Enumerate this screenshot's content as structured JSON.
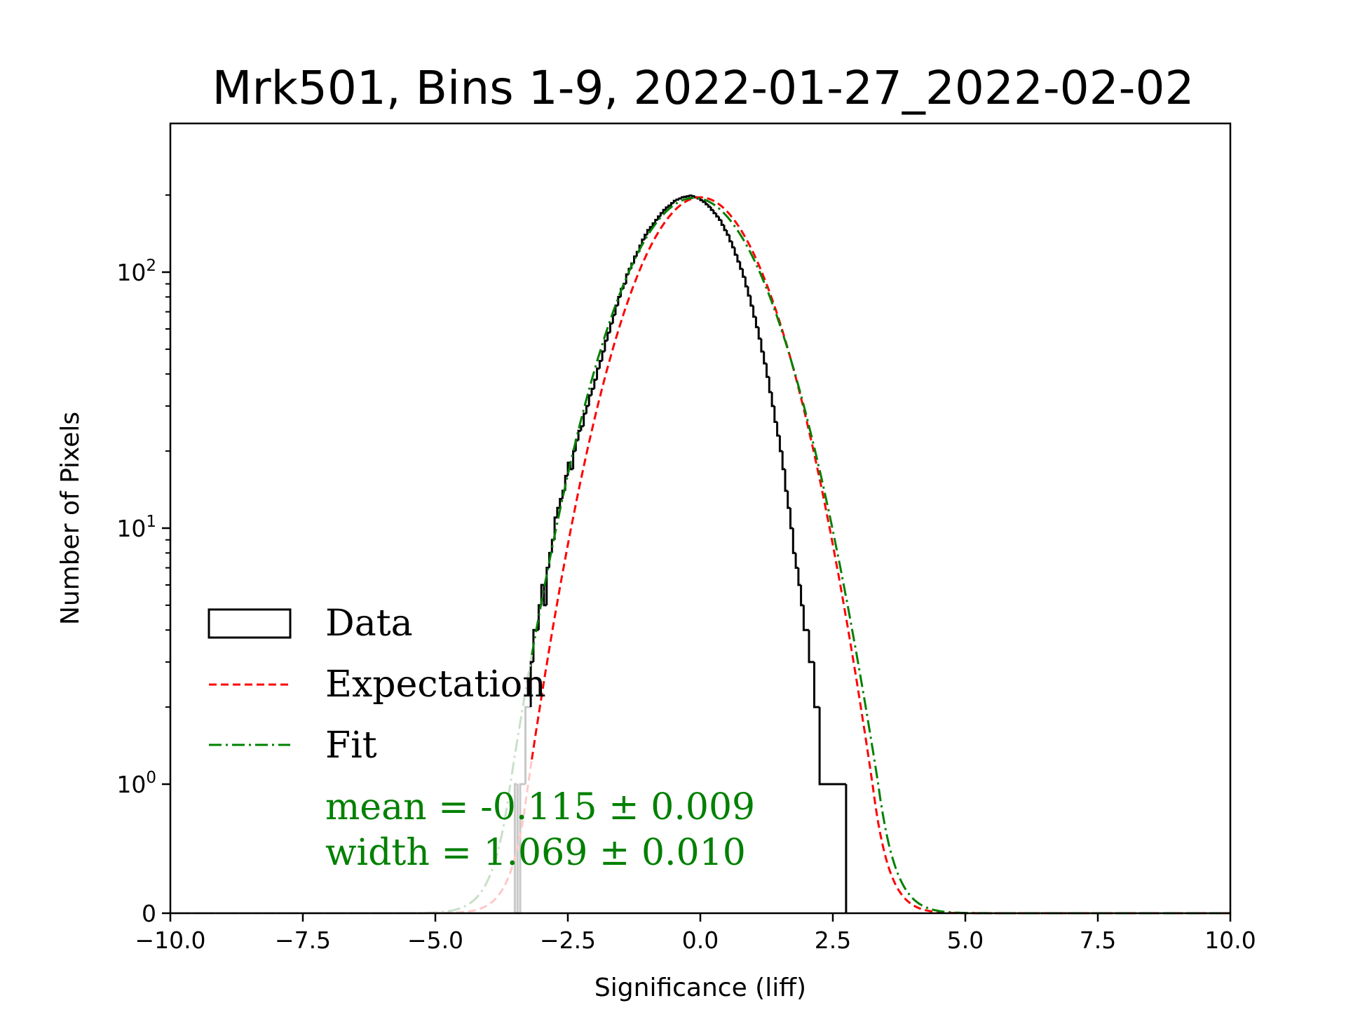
{
  "chart_data": {
    "type": "histogram",
    "title": "Mrk501, Bins 1-9, 2022-01-27_2022-02-02",
    "xlabel": "Significance (liff)",
    "ylabel": "Number of Pixels",
    "xlim": [
      -10,
      10
    ],
    "y_scale": "symlog",
    "x_ticks": [
      -10,
      -7.5,
      -5,
      -2.5,
      0,
      2.5,
      5,
      7.5,
      10
    ],
    "x_tick_labels": [
      "−10.0",
      "−7.5",
      "−5.0",
      "−2.5",
      "0.0",
      "2.5",
      "5.0",
      "7.5",
      "10.0"
    ],
    "y_ticks": [
      0,
      1,
      10,
      100
    ],
    "y_tick_labels": [
      {
        "base": "0",
        "exp": ""
      },
      {
        "base": "10",
        "exp": "0"
      },
      {
        "base": "10",
        "exp": "1"
      },
      {
        "base": "10",
        "exp": "2"
      }
    ],
    "histogram": {
      "name": "Data",
      "color": "#000000",
      "bin_width": 0.05,
      "bin_edges_start": -3.5,
      "counts": [
        1,
        0,
        1,
        1,
        2,
        2,
        3,
        4,
        4,
        5,
        6,
        5,
        7,
        8,
        9,
        11,
        12,
        13,
        14,
        16,
        18,
        17,
        20,
        22,
        24,
        25,
        28,
        30,
        33,
        35,
        38,
        42,
        45,
        49,
        54,
        58,
        63,
        68,
        74,
        80,
        86,
        90,
        98,
        103,
        108,
        115,
        120,
        127,
        134,
        140,
        146,
        150,
        155,
        160,
        165,
        170,
        175,
        179,
        182,
        186,
        190,
        192,
        194,
        196,
        197,
        198,
        199,
        198,
        196,
        194,
        191,
        188,
        184,
        180,
        175,
        170,
        165,
        160,
        153,
        146,
        140,
        132,
        125,
        117,
        110,
        103,
        96,
        88,
        81,
        74,
        67,
        61,
        55,
        49,
        44,
        39,
        34,
        30,
        26,
        23,
        20,
        17,
        14,
        12,
        10,
        8,
        7,
        6,
        5,
        4,
        4,
        3,
        3,
        2,
        2,
        1,
        1,
        1,
        1,
        1,
        1,
        1,
        1,
        1,
        1
      ]
    },
    "series": [
      {
        "name": "Expectation",
        "style": "dashed",
        "color": "#ff0000",
        "mean": 0.0,
        "width": 1.0,
        "peak": 196
      },
      {
        "name": "Fit",
        "style": "dash-dot",
        "color": "#008000",
        "mean": -0.115,
        "width": 1.069,
        "peak": 195
      }
    ],
    "faded_below_x": -3.2,
    "legend_position": "lower-left",
    "annotations": {
      "mean_text": "mean = -0.115 ± 0.009",
      "width_text": "width = 1.069 ± 0.010",
      "color": "#008000"
    }
  }
}
